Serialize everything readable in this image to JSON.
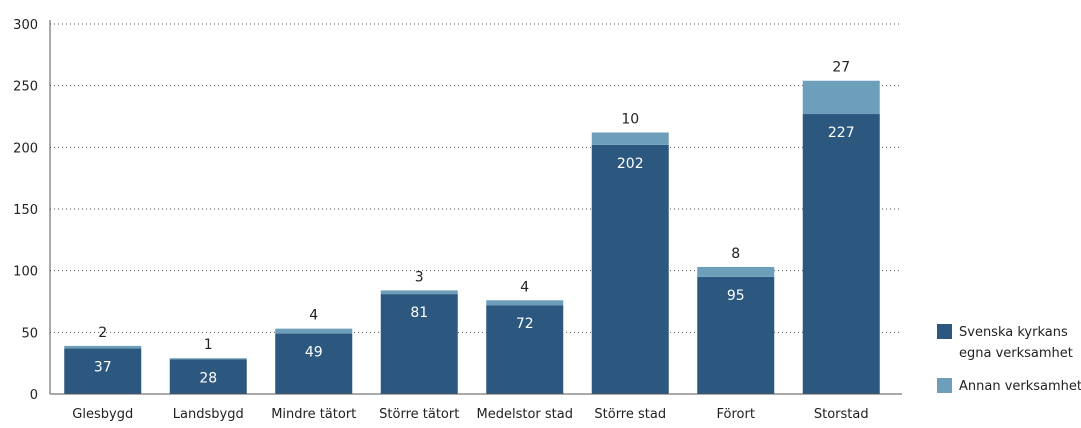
{
  "chart_data": {
    "type": "bar",
    "stacked": true,
    "categories": [
      "Glesbygd",
      "Landsbygd",
      "Mindre tätort",
      "Större tätort",
      "Medelstor stad",
      "Större stad",
      "Förort",
      "Storstad"
    ],
    "series": [
      {
        "name": "Svenska kyrkans egna verksamhet",
        "legend_lines": [
          "Svenska kyrkans",
          "egna verksamhet"
        ],
        "values": [
          37,
          28,
          49,
          81,
          72,
          202,
          95,
          227
        ],
        "color": "#2c577e"
      },
      {
        "name": "Annan verksamhet",
        "legend_lines": [
          "Annan verksamhet"
        ],
        "values": [
          2,
          1,
          4,
          3,
          4,
          10,
          8,
          27
        ],
        "color": "#6e9fba"
      }
    ],
    "ylim": [
      0,
      300
    ],
    "yticks": [
      0,
      50,
      100,
      150,
      200,
      250,
      300
    ],
    "grid": true,
    "legend_position": "right"
  }
}
